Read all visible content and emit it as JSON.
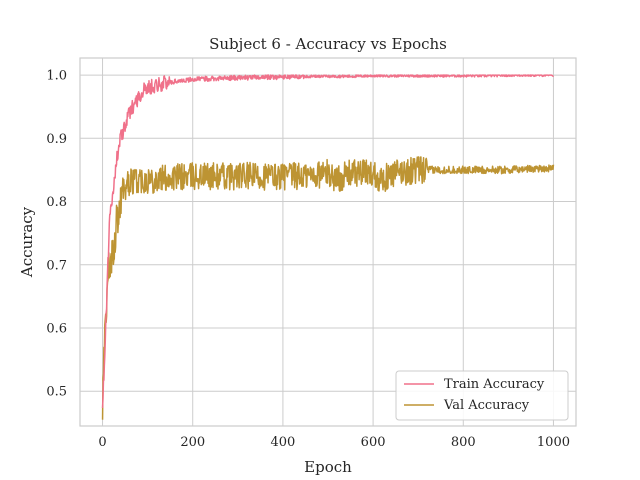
{
  "chart_data": {
    "type": "line",
    "title": "Subject 6 - Accuracy vs Epochs",
    "xlabel": "Epoch",
    "ylabel": "Accuracy",
    "xlim": [
      -50,
      1050
    ],
    "ylim": [
      0.445,
      1.027
    ],
    "xticks": [
      0,
      200,
      400,
      600,
      800,
      1000
    ],
    "yticks": [
      0.5,
      0.6,
      0.7,
      0.8,
      0.9,
      1.0
    ],
    "grid": true,
    "legend_position": "bottom-right",
    "series": [
      {
        "name": "Train Accuracy",
        "color": "#f0718a",
        "x": [
          0,
          5,
          10,
          15,
          20,
          25,
          30,
          40,
          50,
          60,
          70,
          80,
          90,
          100,
          120,
          140,
          160,
          180,
          200,
          225,
          250,
          275,
          300,
          325,
          350,
          375,
          400,
          450,
          500,
          550,
          600,
          650,
          700,
          750,
          800,
          850,
          900,
          950,
          1000
        ],
        "values": [
          0.48,
          0.56,
          0.66,
          0.76,
          0.8,
          0.83,
          0.86,
          0.9,
          0.92,
          0.94,
          0.955,
          0.965,
          0.975,
          0.98,
          0.985,
          0.987,
          0.99,
          0.992,
          0.993,
          0.994,
          0.995,
          0.995,
          0.996,
          0.996,
          0.997,
          0.997,
          0.997,
          0.998,
          0.998,
          0.998,
          0.999,
          0.999,
          0.999,
          0.999,
          0.999,
          0.999,
          1.0,
          1.0,
          1.0
        ]
      },
      {
        "name": "Val Accuracy",
        "color": "#bd9433",
        "x": [
          0,
          5,
          10,
          15,
          20,
          25,
          30,
          40,
          50,
          60,
          80,
          100,
          120,
          150,
          200,
          250,
          300,
          350,
          400,
          450,
          500,
          520,
          550,
          600,
          620,
          650,
          700,
          750,
          800,
          850,
          900,
          950,
          1000
        ],
        "values": [
          0.48,
          0.6,
          0.65,
          0.7,
          0.71,
          0.73,
          0.76,
          0.8,
          0.82,
          0.83,
          0.835,
          0.835,
          0.835,
          0.838,
          0.84,
          0.84,
          0.84,
          0.84,
          0.84,
          0.84,
          0.845,
          0.835,
          0.845,
          0.845,
          0.835,
          0.845,
          0.85,
          0.85,
          0.85,
          0.85,
          0.85,
          0.852,
          0.853
        ]
      }
    ]
  }
}
